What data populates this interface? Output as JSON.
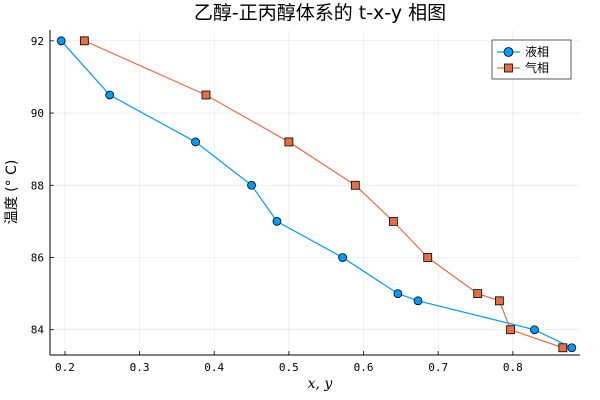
{
  "chart_data": {
    "type": "line",
    "title": "乙醇-正丙醇体系的 t-x-y 相图",
    "xlabel": "x, y",
    "ylabel": "温度 (° C)",
    "xlim": [
      0.18,
      0.89
    ],
    "ylim": [
      83.3,
      92.3
    ],
    "xticks": [
      0.2,
      0.3,
      0.4,
      0.5,
      0.6,
      0.7,
      0.8
    ],
    "xtick_labels": [
      "0.2",
      "0.3",
      "0.4",
      "0.5",
      "0.6",
      "0.7",
      "0.8"
    ],
    "yticks": [
      84,
      86,
      88,
      90,
      92
    ],
    "ytick_labels": [
      "84",
      "86",
      "88",
      "90",
      "92"
    ],
    "grid": true,
    "legend_position": "top-right",
    "series": [
      {
        "name": "液相",
        "marker": "circle",
        "color": "#009AFA",
        "x": [
          0.195,
          0.26,
          0.375,
          0.45,
          0.484,
          0.572,
          0.646,
          0.673,
          0.829,
          0.879
        ],
        "y": [
          92.0,
          90.5,
          89.2,
          88.0,
          87.0,
          86.0,
          85.0,
          84.8,
          84.0,
          83.5
        ]
      },
      {
        "name": "气相",
        "marker": "square",
        "color": "#E36F47",
        "x": [
          0.226,
          0.389,
          0.5,
          0.589,
          0.64,
          0.686,
          0.753,
          0.782,
          0.797,
          0.867
        ],
        "y": [
          92.0,
          90.5,
          89.2,
          88.0,
          87.0,
          86.0,
          85.0,
          84.8,
          84.0,
          83.5
        ]
      }
    ]
  }
}
